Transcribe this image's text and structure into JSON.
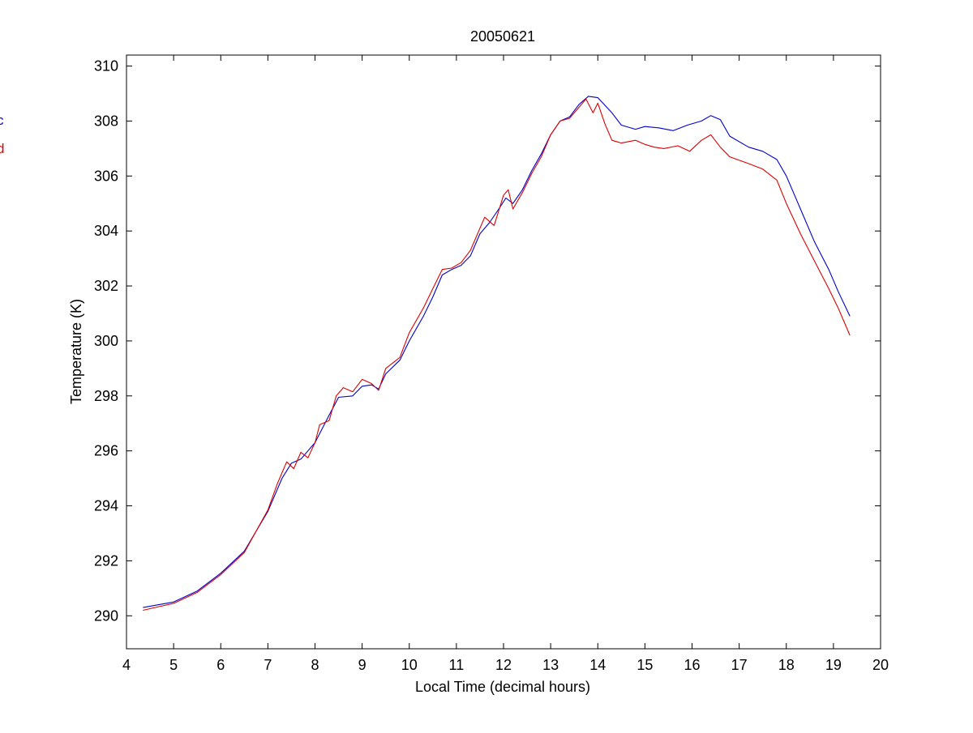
{
  "chart_data": {
    "type": "line",
    "title": "20050621",
    "xlabel": "Local Time (decimal hours)",
    "ylabel": "Temperature (K)",
    "xlim": [
      4,
      20
    ],
    "ylim": [
      288.8,
      310.4
    ],
    "x_ticks": [
      4,
      5,
      6,
      7,
      8,
      9,
      10,
      11,
      12,
      13,
      14,
      15,
      16,
      17,
      18,
      19,
      20
    ],
    "y_ticks": [
      290,
      292,
      294,
      296,
      298,
      300,
      302,
      304,
      306,
      308,
      310
    ],
    "grid": false,
    "legend_position": "left (partially cropped)",
    "legend_entries": [
      "c",
      "d"
    ],
    "series": [
      {
        "name": "c",
        "color": "#0000cc",
        "points": [
          [
            4.35,
            290.3
          ],
          [
            4.6,
            290.38
          ],
          [
            5.0,
            290.5
          ],
          [
            5.5,
            290.9
          ],
          [
            6.0,
            291.55
          ],
          [
            6.5,
            292.35
          ],
          [
            7.0,
            293.8
          ],
          [
            7.3,
            295.0
          ],
          [
            7.5,
            295.55
          ],
          [
            7.7,
            295.7
          ],
          [
            8.0,
            296.3
          ],
          [
            8.3,
            297.3
          ],
          [
            8.5,
            297.95
          ],
          [
            8.8,
            298.0
          ],
          [
            9.0,
            298.35
          ],
          [
            9.2,
            298.4
          ],
          [
            9.35,
            298.25
          ],
          [
            9.5,
            298.8
          ],
          [
            9.8,
            299.3
          ],
          [
            10.0,
            300.0
          ],
          [
            10.3,
            300.9
          ],
          [
            10.5,
            301.6
          ],
          [
            10.7,
            302.4
          ],
          [
            10.9,
            302.6
          ],
          [
            11.1,
            302.75
          ],
          [
            11.3,
            303.1
          ],
          [
            11.5,
            303.9
          ],
          [
            11.7,
            304.3
          ],
          [
            11.9,
            304.8
          ],
          [
            12.05,
            305.2
          ],
          [
            12.2,
            305.0
          ],
          [
            12.4,
            305.5
          ],
          [
            12.6,
            306.2
          ],
          [
            12.8,
            306.8
          ],
          [
            13.0,
            307.5
          ],
          [
            13.2,
            308.0
          ],
          [
            13.4,
            308.15
          ],
          [
            13.6,
            308.6
          ],
          [
            13.8,
            308.9
          ],
          [
            14.0,
            308.85
          ],
          [
            14.3,
            308.3
          ],
          [
            14.5,
            307.85
          ],
          [
            14.8,
            307.7
          ],
          [
            15.0,
            307.8
          ],
          [
            15.3,
            307.75
          ],
          [
            15.6,
            307.65
          ],
          [
            15.9,
            307.85
          ],
          [
            16.2,
            308.0
          ],
          [
            16.4,
            308.2
          ],
          [
            16.6,
            308.05
          ],
          [
            16.8,
            307.45
          ],
          [
            17.2,
            307.05
          ],
          [
            17.5,
            306.9
          ],
          [
            17.8,
            306.6
          ],
          [
            18.0,
            306.0
          ],
          [
            18.3,
            304.8
          ],
          [
            18.6,
            303.6
          ],
          [
            18.9,
            302.6
          ],
          [
            19.1,
            301.8
          ],
          [
            19.35,
            300.9
          ]
        ]
      },
      {
        "name": "d",
        "color": "#dd0000",
        "points": [
          [
            4.35,
            290.2
          ],
          [
            4.6,
            290.3
          ],
          [
            5.0,
            290.45
          ],
          [
            5.5,
            290.85
          ],
          [
            6.0,
            291.5
          ],
          [
            6.5,
            292.3
          ],
          [
            7.0,
            293.85
          ],
          [
            7.2,
            294.8
          ],
          [
            7.4,
            295.6
          ],
          [
            7.55,
            295.35
          ],
          [
            7.7,
            295.95
          ],
          [
            7.85,
            295.75
          ],
          [
            8.0,
            296.3
          ],
          [
            8.1,
            296.95
          ],
          [
            8.3,
            297.1
          ],
          [
            8.45,
            298.0
          ],
          [
            8.6,
            298.3
          ],
          [
            8.8,
            298.15
          ],
          [
            9.0,
            298.6
          ],
          [
            9.2,
            298.45
          ],
          [
            9.35,
            298.2
          ],
          [
            9.5,
            299.0
          ],
          [
            9.8,
            299.4
          ],
          [
            10.0,
            300.3
          ],
          [
            10.3,
            301.2
          ],
          [
            10.5,
            301.9
          ],
          [
            10.7,
            302.6
          ],
          [
            10.9,
            302.65
          ],
          [
            11.1,
            302.85
          ],
          [
            11.3,
            303.3
          ],
          [
            11.5,
            304.1
          ],
          [
            11.6,
            304.5
          ],
          [
            11.8,
            304.2
          ],
          [
            12.0,
            305.3
          ],
          [
            12.1,
            305.5
          ],
          [
            12.2,
            304.8
          ],
          [
            12.4,
            305.4
          ],
          [
            12.6,
            306.1
          ],
          [
            12.8,
            306.7
          ],
          [
            13.0,
            307.5
          ],
          [
            13.2,
            308.0
          ],
          [
            13.4,
            308.1
          ],
          [
            13.6,
            308.5
          ],
          [
            13.75,
            308.8
          ],
          [
            13.9,
            308.3
          ],
          [
            14.0,
            308.65
          ],
          [
            14.15,
            307.9
          ],
          [
            14.3,
            307.3
          ],
          [
            14.5,
            307.2
          ],
          [
            14.8,
            307.3
          ],
          [
            15.0,
            307.15
          ],
          [
            15.2,
            307.05
          ],
          [
            15.4,
            307.0
          ],
          [
            15.7,
            307.1
          ],
          [
            15.95,
            306.9
          ],
          [
            16.2,
            307.3
          ],
          [
            16.4,
            307.5
          ],
          [
            16.6,
            307.05
          ],
          [
            16.8,
            306.7
          ],
          [
            17.2,
            306.45
          ],
          [
            17.5,
            306.25
          ],
          [
            17.8,
            305.85
          ],
          [
            18.0,
            305.0
          ],
          [
            18.3,
            303.9
          ],
          [
            18.6,
            302.9
          ],
          [
            18.9,
            301.9
          ],
          [
            19.1,
            301.2
          ],
          [
            19.35,
            300.2
          ]
        ]
      }
    ]
  }
}
